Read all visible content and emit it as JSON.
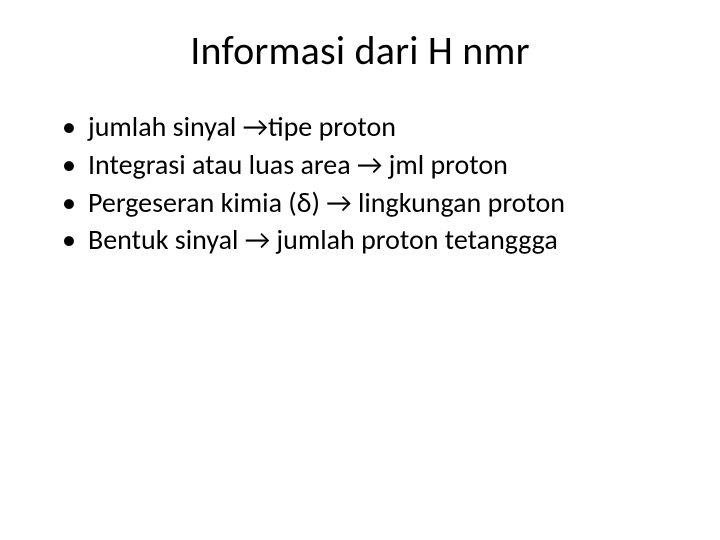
{
  "title": "Informasi dari H nmr",
  "bullets": [
    "jumlah sinyal →tipe proton",
    "Integrasi atau luas area → jml proton",
    "Pergeseran kimia (δ) → lingkungan proton",
    "Bentuk sinyal → jumlah proton tetanggga"
  ],
  "style": {
    "background_color": "#ffffff",
    "text_color": "#000000",
    "title_fontsize": 40,
    "bullet_fontsize": 28,
    "font_family": "Calibri"
  }
}
